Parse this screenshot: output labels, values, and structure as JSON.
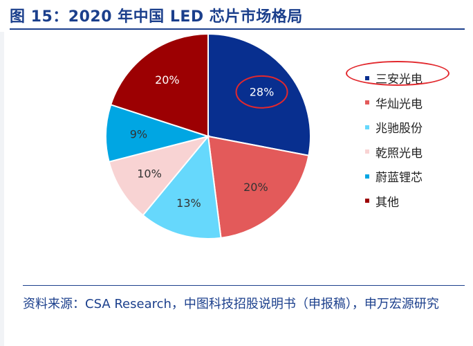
{
  "title": "图 15：2020 年中国 LED 芯片市场格局",
  "source": "资料来源：CSA Research，中图科技招股说明书（申报稿），申万宏源研究",
  "chart_data": {
    "type": "pie",
    "title": "",
    "slices": [
      {
        "label": "三安光电",
        "value": 28,
        "display": "28%",
        "color": "#082f8f",
        "label_color": "#ffffff",
        "highlighted": true
      },
      {
        "label": "华灿光电",
        "value": 20,
        "display": "20%",
        "color": "#e35a5a",
        "label_color": "#333333"
      },
      {
        "label": "兆驰股份",
        "value": 13,
        "display": "13%",
        "color": "#66d8fc",
        "label_color": "#333333"
      },
      {
        "label": "乾照光电",
        "value": 10,
        "display": "10%",
        "color": "#f8d3d3",
        "label_color": "#333333"
      },
      {
        "label": "蔚蓝锂芯",
        "value": 9,
        "display": "9%",
        "color": "#00a6e3",
        "label_color": "#333333"
      },
      {
        "label": "其他",
        "value": 20,
        "display": "20%",
        "color": "#9c0002",
        "label_color": "#ffffff"
      }
    ],
    "legend_position": "right",
    "highlight_color": "#e2282d"
  }
}
